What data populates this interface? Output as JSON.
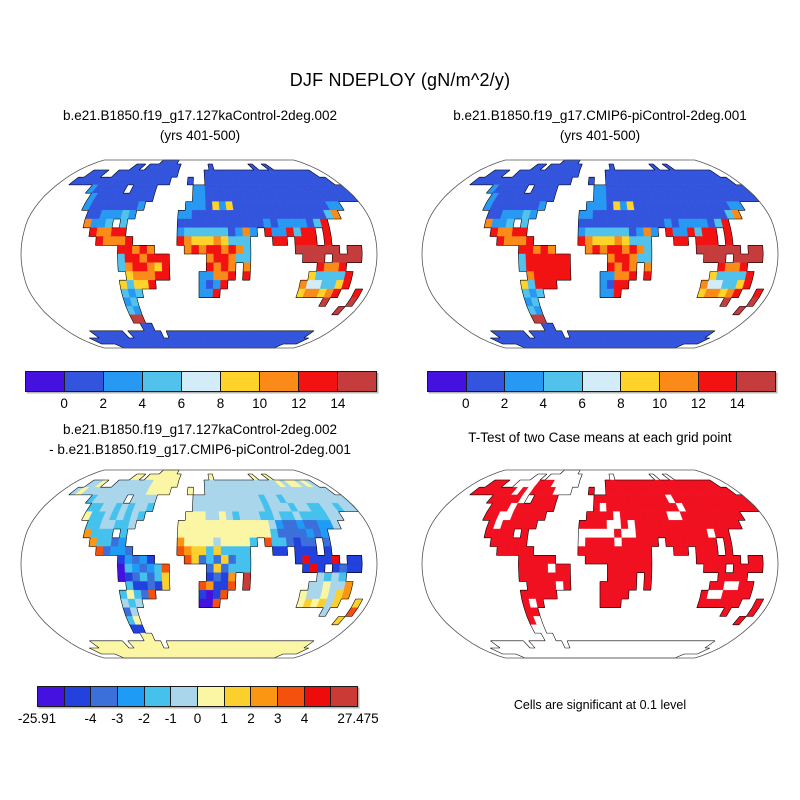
{
  "figure": {
    "title": "DJF NDEPLOY (gN/m^2/y)",
    "background": "#ffffff"
  },
  "panels": {
    "top_left": {
      "title1": "b.e21.B1850.f19_g17.127kaControl-2deg.002",
      "title2": "(yrs 401-500)"
    },
    "top_right": {
      "title1": "b.e21.B1850.f19_g17.CMIP6-piControl-2deg.001",
      "title2": "(yrs 401-500)"
    },
    "bottom_left": {
      "title1": "b.e21.B1850.f19_g17.127kaControl-2deg.002",
      "title2": "- b.e21.B1850.f19_g17.CMIP6-piControl-2deg.001"
    },
    "bottom_right": {
      "title": "T-Test of two Case means at each grid point",
      "caption": "Cells are significant at 0.1 level"
    }
  },
  "chart_data": {
    "type": "heatmap",
    "projection": "robinson",
    "grid": {
      "cols": 48,
      "rows": 24,
      "cell_deg": 7.5
    },
    "palettes": {
      "top": [
        "#4411e0",
        "#3355dd",
        "#2899f2",
        "#50c2ec",
        "#d2ecf8",
        "#ffd32a",
        "#fb8b18",
        "#f31212",
        "#c53c3c"
      ],
      "diff": [
        "#4411e0",
        "#2241dd",
        "#3b6fd9",
        "#1e9bf5",
        "#45c1ee",
        "#aad6ec",
        "#fbf6a4",
        "#fcd02c",
        "#fb9612",
        "#f4500e",
        "#ee0b0b",
        "#cc3a35"
      ],
      "ttest": {
        "r": "#f01020",
        "w": "#ffffff"
      }
    },
    "colorbars": {
      "top": {
        "palette": "top",
        "ticks": [
          {
            "f": 0.1111,
            "label": "0"
          },
          {
            "f": 0.2222,
            "label": "2"
          },
          {
            "f": 0.3333,
            "label": "4"
          },
          {
            "f": 0.4444,
            "label": "6"
          },
          {
            "f": 0.5556,
            "label": "8"
          },
          {
            "f": 0.6667,
            "label": "10"
          },
          {
            "f": 0.7778,
            "label": "12"
          },
          {
            "f": 0.8889,
            "label": "14"
          }
        ]
      },
      "diff": {
        "palette": "diff",
        "min": -25.91,
        "max": 27.475,
        "ticks": [
          {
            "f": 0.0,
            "label": "-25.91"
          },
          {
            "f": 0.1667,
            "label": "-4"
          },
          {
            "f": 0.25,
            "label": "-3"
          },
          {
            "f": 0.3333,
            "label": "-2"
          },
          {
            "f": 0.4167,
            "label": "-1"
          },
          {
            "f": 0.5,
            "label": "0"
          },
          {
            "f": 0.5833,
            "label": "1"
          },
          {
            "f": 0.6667,
            "label": "2"
          },
          {
            "f": 0.75,
            "label": "3"
          },
          {
            "f": 0.8333,
            "label": "4"
          },
          {
            "f": 1.0,
            "label": "27.475"
          }
        ]
      }
    },
    "maps": {
      "case1": {
        "palette": "top",
        "rows": [
          "...............1111.............................",
          "..........11.1111111......1........1..1.........",
          "...111..111111111111.....111111111111111111111..",
          "..1111111111111111111...1..1111111111111111111111111111.",
          "......211111.1111......2211111111111111111111111",
          ".......2111111111......2211111111111111111111111",
          ".......211111112......222152511111111111111122...",
          "........1122232......2211111111111111111136....",
          "........6223.3.......11111111111112122221 37......",
          "........ .76677.......233333312 62.7227377.7......",
          "..........76667......7655565333...77.777.7......",
          ".............77676....676776763......888888.88..",
          ".............3776777.....677633.......888.8888..",
          ".............3677657.....7676.6.........7667....",
          "..............566677....22667.7........533337...",
          ".............53557......2127..........6443357...",
          ".............323.......227...........566567..7.",
          ".............23.......................8...8.",
          ".............32......................8..",
          ".............88.........................",
          "..............11........................",
          "....111111.111111.11111111111111111111111111...",
          "..111111111111111111111111111111111111111111..",
          ".....111111111111111111111111111111111111....."
        ]
      },
      "case2": {
        "palette": "top",
        "rows": []
      },
      "diff": {
        "palette": "diff",
        "rows": []
      },
      "ttest": {
        "palette": "ttest",
        "rows": []
      }
    }
  }
}
